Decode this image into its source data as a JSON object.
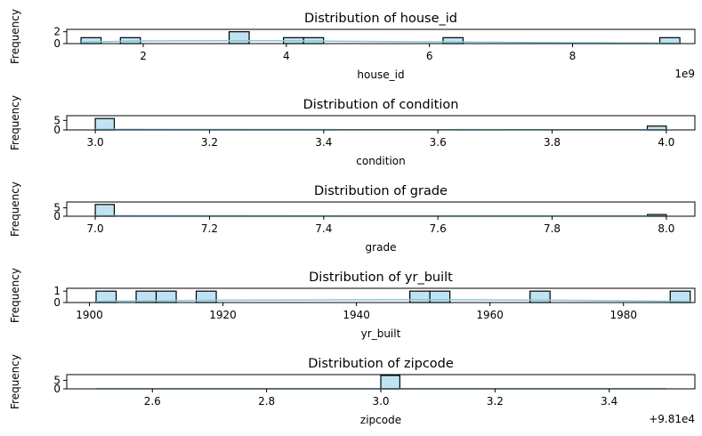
{
  "chart_data": [
    {
      "type": "bar",
      "title": "Distribution of house_id",
      "xlabel": "house_id",
      "ylabel": "Frequency",
      "xlim": [
        0.93,
        9.71
      ],
      "ylim": [
        0,
        2.4
      ],
      "xticks": [
        2,
        4,
        6,
        8
      ],
      "xtick_labels": [
        "2",
        "4",
        "6",
        "8"
      ],
      "yticks": [
        0,
        2
      ],
      "ytick_labels": [
        "0",
        "2"
      ],
      "offset_text": "1e9",
      "bins": [
        {
          "x0": 1.13,
          "x1": 1.41,
          "count": 1
        },
        {
          "x0": 1.68,
          "x1": 1.96,
          "count": 1
        },
        {
          "x0": 3.2,
          "x1": 3.48,
          "count": 2
        },
        {
          "x0": 3.96,
          "x1": 4.24,
          "count": 1
        },
        {
          "x0": 4.24,
          "x1": 4.52,
          "count": 1
        },
        {
          "x0": 6.19,
          "x1": 6.47,
          "count": 1
        },
        {
          "x0": 9.22,
          "x1": 9.5,
          "count": 1
        }
      ],
      "kde": [
        [
          1.13,
          0.25
        ],
        [
          2.0,
          0.45
        ],
        [
          3.0,
          0.5
        ],
        [
          4.0,
          0.48
        ],
        [
          5.0,
          0.38
        ],
        [
          6.0,
          0.3
        ],
        [
          7.0,
          0.22
        ],
        [
          8.0,
          0.15
        ],
        [
          9.5,
          0.08
        ]
      ]
    },
    {
      "type": "bar",
      "title": "Distribution of condition",
      "xlabel": "condition",
      "ylabel": "Frequency",
      "xlim": [
        2.95,
        4.05
      ],
      "ylim": [
        0,
        7.5
      ],
      "xticks": [
        3.0,
        3.2,
        3.4,
        3.6,
        3.8,
        4.0
      ],
      "xtick_labels": [
        "3.0",
        "3.2",
        "3.4",
        "3.6",
        "3.8",
        "4.0"
      ],
      "yticks": [
        0,
        5
      ],
      "ytick_labels": [
        "0",
        "5"
      ],
      "bins": [
        {
          "x0": 3.0,
          "x1": 3.0333,
          "count": 6
        },
        {
          "x0": 3.9667,
          "x1": 4.0,
          "count": 2
        }
      ],
      "kde": [
        [
          3.0,
          0.3
        ],
        [
          4.0,
          0.1
        ]
      ]
    },
    {
      "type": "bar",
      "title": "Distribution of grade",
      "xlabel": "grade",
      "ylabel": "Frequency",
      "xlim": [
        6.95,
        8.05
      ],
      "ylim": [
        0,
        8.5
      ],
      "xticks": [
        7.0,
        7.2,
        7.4,
        7.6,
        7.8,
        8.0
      ],
      "xtick_labels": [
        "7.0",
        "7.2",
        "7.4",
        "7.6",
        "7.8",
        "8.0"
      ],
      "yticks": [
        0,
        5
      ],
      "ytick_labels": [
        "0",
        "5"
      ],
      "bins": [
        {
          "x0": 7.0,
          "x1": 7.0333,
          "count": 7
        },
        {
          "x0": 7.9667,
          "x1": 8.0,
          "count": 1
        }
      ],
      "kde": [
        [
          7.0,
          0.3
        ],
        [
          8.0,
          0.1
        ]
      ]
    },
    {
      "type": "bar",
      "title": "Distribution of yr_built",
      "xlabel": "yr_built",
      "ylabel": "Frequency",
      "xlim": [
        1896.6,
        1990.7
      ],
      "ylim": [
        0,
        1.25
      ],
      "xticks": [
        1900,
        1920,
        1940,
        1960,
        1980
      ],
      "xtick_labels": [
        "1900",
        "1920",
        "1940",
        "1960",
        "1980"
      ],
      "yticks": [
        0,
        1
      ],
      "ytick_labels": [
        "0",
        "1"
      ],
      "bins": [
        {
          "x0": 1901.0,
          "x1": 1904.0,
          "count": 1
        },
        {
          "x0": 1907.0,
          "x1": 1910.0,
          "count": 1
        },
        {
          "x0": 1910.0,
          "x1": 1913.0,
          "count": 1
        },
        {
          "x0": 1916.0,
          "x1": 1919.0,
          "count": 1
        },
        {
          "x0": 1948.0,
          "x1": 1951.0,
          "count": 1
        },
        {
          "x0": 1951.0,
          "x1": 1954.0,
          "count": 1
        },
        {
          "x0": 1966.0,
          "x1": 1969.0,
          "count": 1
        },
        {
          "x0": 1987.0,
          "x1": 1990.0,
          "count": 1
        }
      ],
      "kde": [
        [
          1901,
          0.1
        ],
        [
          1920,
          0.2
        ],
        [
          1950,
          0.25
        ],
        [
          1970,
          0.2
        ],
        [
          1990,
          0.1
        ]
      ]
    },
    {
      "type": "bar",
      "title": "Distribution of zipcode",
      "xlabel": "zipcode",
      "ylabel": "Frequency",
      "xlim": [
        2.45,
        3.55
      ],
      "ylim": [
        0,
        8.5
      ],
      "xticks": [
        2.6,
        2.8,
        3.0,
        3.2,
        3.4
      ],
      "xtick_labels": [
        "2.6",
        "2.8",
        "3.0",
        "3.2",
        "3.4"
      ],
      "yticks": [
        0,
        5
      ],
      "ytick_labels": [
        "0",
        "5"
      ],
      "offset_text": "+9.81e4",
      "bins": [
        {
          "x0": 3.0,
          "x1": 3.0333,
          "count": 8
        }
      ],
      "kde": [
        [
          2.5,
          0.03
        ],
        [
          3.5,
          0.03
        ]
      ]
    }
  ],
  "style": {
    "bar_fill": "#bfe3f1",
    "bar_edge": "#000000",
    "kde_color": "#87c6e0"
  }
}
